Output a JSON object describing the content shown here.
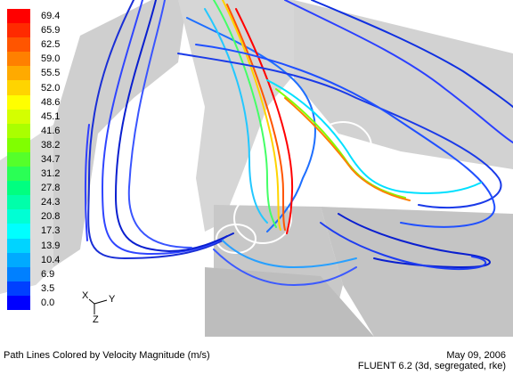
{
  "colorbar": {
    "labels": [
      "69.4",
      "65.9",
      "62.5",
      "59.0",
      "55.5",
      "52.0",
      "48.6",
      "45.1",
      "41.6",
      "38.2",
      "34.7",
      "31.2",
      "27.8",
      "24.3",
      "20.8",
      "17.3",
      "13.9",
      "10.4",
      "6.9",
      "3.5",
      "0.0"
    ],
    "colors": [
      "#ff0000",
      "#ff2a00",
      "#ff5500",
      "#ff8000",
      "#ffaa00",
      "#ffd400",
      "#ffff00",
      "#d4ff00",
      "#aaff00",
      "#80ff00",
      "#55ff2a",
      "#2aff55",
      "#00ff80",
      "#00ffaa",
      "#00ffd4",
      "#00ffff",
      "#00d4ff",
      "#00aaff",
      "#0080ff",
      "#0040ff",
      "#0000ff"
    ]
  },
  "axes": {
    "x": "X",
    "y": "Y",
    "z": "Z"
  },
  "footer": {
    "caption": "Path Lines Colored by Velocity Magnitude (m/s)",
    "date": "May 09, 2006",
    "solver": "FLUENT 6.2 (3d, segregated, rke)"
  }
}
